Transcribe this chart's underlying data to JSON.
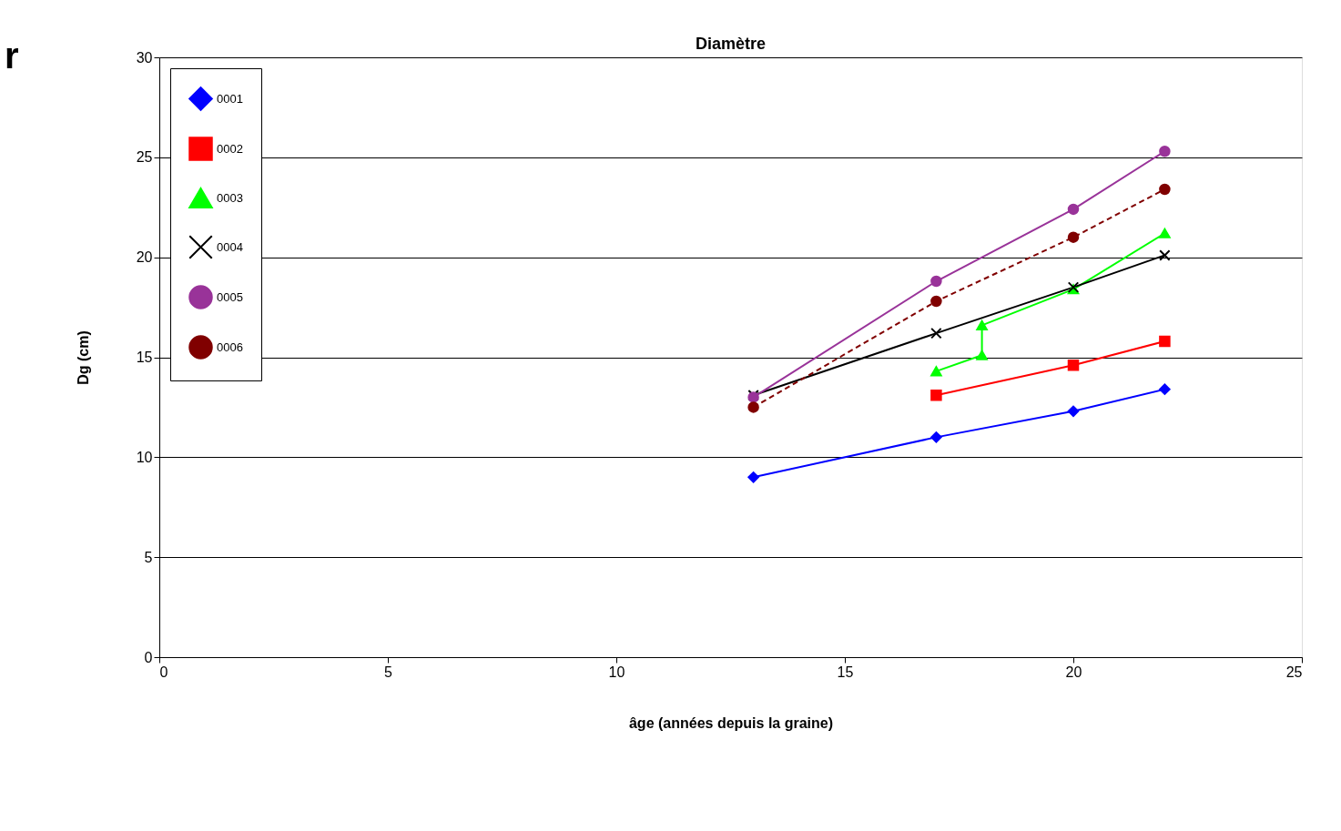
{
  "chart_data": {
    "type": "line",
    "title": "Diamètre",
    "xlabel": "âge (années depuis la graine)",
    "ylabel": "Dg (cm)",
    "xlim": [
      0,
      25
    ],
    "xticks": [
      0,
      5,
      10,
      15,
      20,
      25
    ],
    "ylim": [
      0,
      30
    ],
    "yticks": [
      0,
      5,
      10,
      15,
      20,
      25,
      30
    ],
    "grid": "y",
    "legend": "top left",
    "annotations": [
      "r"
    ],
    "series": [
      {
        "name": "0001",
        "color": "#0000ff",
        "marker": "diamond",
        "line_style": "solid",
        "x": [
          13,
          17,
          20,
          22
        ],
        "values": [
          9.0,
          11.0,
          12.3,
          13.4
        ]
      },
      {
        "name": "0002",
        "color": "#ff0000",
        "marker": "square",
        "line_style": "solid",
        "x": [
          17,
          20,
          22
        ],
        "values": [
          13.1,
          14.6,
          15.8
        ]
      },
      {
        "name": "0003",
        "color": "#00ff00",
        "marker": "triangle",
        "line_style": "solid",
        "x": [
          17,
          18,
          18,
          20,
          22
        ],
        "values": [
          14.3,
          15.1,
          16.6,
          18.4,
          21.2
        ]
      },
      {
        "name": "0004",
        "color": "#000000",
        "marker": "cross",
        "line_style": "solid",
        "x": [
          13,
          17,
          20,
          22
        ],
        "values": [
          13.1,
          16.2,
          18.5,
          20.1
        ]
      },
      {
        "name": "0005",
        "color": "#993399",
        "marker": "circle",
        "line_style": "solid",
        "x": [
          13,
          17,
          20,
          22
        ],
        "values": [
          13.0,
          18.8,
          22.4,
          25.3
        ]
      },
      {
        "name": "0006",
        "color": "#800000",
        "marker": "circle",
        "line_style": "dashed",
        "x": [
          13,
          17,
          20,
          22
        ],
        "values": [
          12.5,
          17.8,
          21.0,
          23.4
        ]
      }
    ]
  }
}
